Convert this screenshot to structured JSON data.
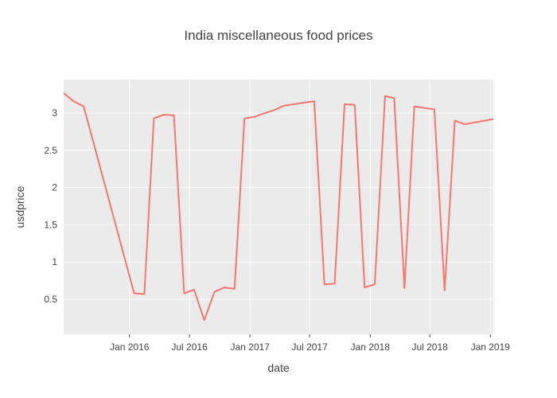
{
  "chart_data": {
    "type": "line",
    "title": "India miscellaneous food prices",
    "xlabel": "date",
    "ylabel": "usdprice",
    "xlim": [
      "2015-06-15",
      "2019-01-10"
    ],
    "ylim": [
      0.03,
      3.45
    ],
    "x_ticks": [
      {
        "date": "2016-01-01",
        "label": "Jan 2016"
      },
      {
        "date": "2016-07-01",
        "label": "Jul 2016"
      },
      {
        "date": "2017-01-01",
        "label": "Jan 2017"
      },
      {
        "date": "2017-07-01",
        "label": "Jul 2017"
      },
      {
        "date": "2018-01-01",
        "label": "Jan 2018"
      },
      {
        "date": "2018-07-01",
        "label": "Jul 2018"
      },
      {
        "date": "2019-01-01",
        "label": "Jan 2019"
      }
    ],
    "y_ticks": [
      {
        "value": 0.5,
        "label": "0.5"
      },
      {
        "value": 1,
        "label": "1"
      },
      {
        "value": 1.5,
        "label": "1.5"
      },
      {
        "value": 2,
        "label": "2"
      },
      {
        "value": 2.5,
        "label": "2.5"
      },
      {
        "value": 3,
        "label": "3"
      }
    ],
    "grid": true,
    "series": [
      {
        "color": "#F8766D",
        "x": [
          "2015-06-15",
          "2015-07-15",
          "2015-08-15",
          "2016-01-15",
          "2016-02-15",
          "2016-03-15",
          "2016-04-15",
          "2016-05-15",
          "2016-06-15",
          "2016-07-15",
          "2016-08-15",
          "2016-09-15",
          "2016-10-15",
          "2016-11-15",
          "2016-12-15",
          "2017-01-15",
          "2017-02-15",
          "2017-03-15",
          "2017-04-15",
          "2017-07-15",
          "2017-08-15",
          "2017-09-15",
          "2017-10-15",
          "2017-11-15",
          "2017-12-15",
          "2018-01-15",
          "2018-02-15",
          "2018-03-15",
          "2018-04-15",
          "2018-05-15",
          "2018-06-15",
          "2018-07-15",
          "2018-08-15",
          "2018-09-15",
          "2018-10-15",
          "2019-01-10"
        ],
        "y": [
          3.27,
          3.16,
          3.09,
          0.58,
          0.57,
          2.93,
          2.98,
          2.97,
          0.58,
          0.63,
          0.22,
          0.6,
          0.66,
          0.64,
          2.93,
          2.95,
          3.0,
          3.04,
          3.1,
          3.16,
          0.7,
          0.71,
          3.12,
          3.11,
          0.66,
          0.7,
          3.23,
          3.2,
          0.65,
          3.09,
          3.07,
          3.05,
          0.62,
          2.9,
          2.85,
          2.92
        ]
      }
    ]
  }
}
